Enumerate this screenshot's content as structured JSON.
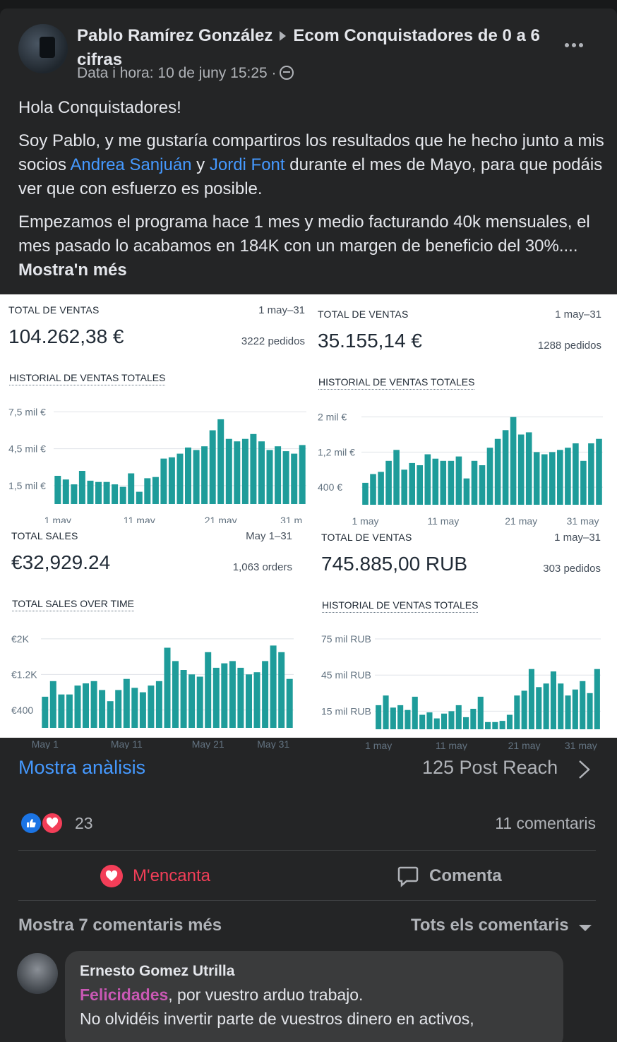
{
  "post": {
    "author": "Pablo Ramírez González",
    "group": "Ecom Conquistadores de 0 a 6 cifras",
    "meta": "Data i hora: 10 de juny 15:25 ·",
    "greeting": "Hola Conquistadores!",
    "para2_a": "Soy Pablo, y me gustaría compartiros los resultados que he hecho junto a mis socios ",
    "mention1": "Andrea Sanjuán",
    "para2_b": " y ",
    "mention2": "Jordi Font",
    "para2_c": " durante el mes de Mayo, para que podáis ver que con esfuerzo es posible.",
    "para3": "Empezamos el programa hace 1 mes y medio facturando 40k mensuales, el mes pasado lo acabamos en 184K con un margen de beneficio del 30%....",
    "see_more": "Mostra'n més"
  },
  "colors": {
    "bar": "#1e9c9a",
    "link": "#4599ff",
    "love": "#f33e58",
    "tag": "#c958b4"
  },
  "chart_data": [
    {
      "type": "bar",
      "title": "TOTAL DE VENTAS",
      "date_range": "1 may–31",
      "total": "104.262,38 €",
      "orders": "3222 pedidos",
      "subtitle": "HISTORIAL DE VENTAS TOTALES",
      "y_ticks": [
        "7,5 mil €",
        "4,5 mil €",
        "1,5 mil €"
      ],
      "y_tick_values": [
        7.5,
        4.5,
        1.5
      ],
      "x_ticks": [
        "1 may",
        "11 may",
        "21 may",
        "31 m"
      ],
      "x_tick_index": [
        0,
        10,
        20,
        30
      ],
      "ylim": [
        0,
        8.5
      ],
      "values": [
        2.3,
        2.0,
        1.6,
        2.7,
        1.9,
        1.8,
        1.8,
        1.6,
        1.4,
        2.5,
        1.0,
        2.1,
        2.2,
        3.7,
        3.8,
        4.1,
        4.6,
        4.4,
        4.7,
        6.0,
        6.9,
        5.3,
        5.1,
        5.3,
        5.7,
        5.1,
        4.4,
        4.7,
        4.3,
        4.1,
        4.8
      ]
    },
    {
      "type": "bar",
      "title": "TOTAL DE VENTAS",
      "date_range": "1 may–31",
      "total": "35.155,14 €",
      "orders": "1288 pedidos",
      "subtitle": "HISTORIAL DE VENTAS TOTALES",
      "y_ticks": [
        "2 mil €",
        "1,2 mil €",
        "400 €"
      ],
      "y_tick_values": [
        2.0,
        1.2,
        0.4
      ],
      "x_ticks": [
        "1 may",
        "11 may",
        "21 may",
        "31 may"
      ],
      "x_tick_index": [
        0,
        10,
        20,
        30
      ],
      "ylim": [
        0,
        2.3
      ],
      "values": [
        0.5,
        0.7,
        0.75,
        1.0,
        1.25,
        0.8,
        0.95,
        0.9,
        1.15,
        1.05,
        1.0,
        1.0,
        1.1,
        0.6,
        1.0,
        0.9,
        1.3,
        1.5,
        1.7,
        2.0,
        1.6,
        1.65,
        1.2,
        1.15,
        1.2,
        1.25,
        1.3,
        1.4,
        1.0,
        1.4,
        1.5
      ]
    },
    {
      "type": "bar",
      "title": "TOTAL SALES",
      "date_range": "May 1–31",
      "total": "€32,929.24",
      "orders": "1,063 orders",
      "subtitle": "TOTAL SALES OVER TIME",
      "y_ticks": [
        "€2K",
        "€1.2K",
        "€400"
      ],
      "y_tick_values": [
        2.0,
        1.2,
        0.4
      ],
      "x_ticks": [
        "May 1",
        "May 11",
        "May 21",
        "May 31"
      ],
      "x_tick_index": [
        0,
        10,
        20,
        30
      ],
      "ylim": [
        0,
        2.3
      ],
      "values": [
        0.7,
        1.05,
        0.75,
        0.75,
        0.95,
        1.0,
        1.05,
        0.85,
        0.6,
        0.85,
        1.1,
        0.9,
        0.8,
        0.95,
        1.05,
        1.8,
        1.5,
        1.3,
        1.2,
        1.15,
        1.7,
        1.35,
        1.45,
        1.5,
        1.35,
        1.2,
        1.25,
        1.5,
        1.85,
        1.7,
        1.1
      ]
    },
    {
      "type": "bar",
      "title": "TOTAL DE VENTAS",
      "date_range": "1 may–31",
      "total": "745.885,00 RUB",
      "orders": "303 pedidos",
      "subtitle": "HISTORIAL DE VENTAS TOTALES",
      "y_ticks": [
        "75 mil RUB",
        "45 mil RUB",
        "15 mil RUB"
      ],
      "y_tick_values": [
        75,
        45,
        15
      ],
      "x_ticks": [
        "1 may",
        "11 may",
        "21 may",
        "31 may"
      ],
      "x_tick_index": [
        0,
        10,
        20,
        30
      ],
      "ylim": [
        0,
        85
      ],
      "values": [
        20,
        28,
        18,
        20,
        16,
        27,
        12,
        14,
        9,
        13,
        15,
        20,
        10,
        17,
        27,
        6,
        6,
        7,
        12,
        28,
        32,
        50,
        35,
        38,
        48,
        38,
        28,
        33,
        40,
        30,
        50
      ]
    }
  ],
  "footer": {
    "analysis": "Mostra anàlisis",
    "reach": "125 Post Reach",
    "reaction_count": "23",
    "comments_count": "11 comentaris",
    "love_label": "M'encanta",
    "comment_label": "Comenta",
    "more_comments": "Mostra 7 comentaris més",
    "all_comments": "Tots els comentaris"
  },
  "comment": {
    "name": "Ernesto Gomez Utrilla",
    "tag": "Felicidades",
    "text_a": ", por vuestro arduo trabajo.",
    "text_b": "No olvidéis invertir parte de vuestros dinero en activos,"
  }
}
